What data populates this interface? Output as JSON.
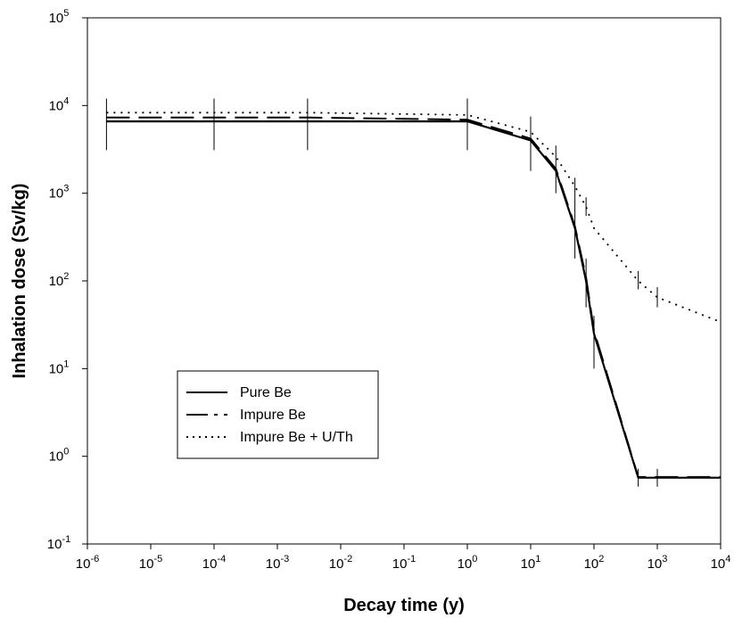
{
  "chart_data": {
    "type": "line",
    "title": "",
    "xlabel": "Decay time (y)",
    "ylabel": "Inhalation dose (Sv/kg)",
    "xscale": "log",
    "yscale": "log",
    "xlim": [
      1e-06,
      10000
    ],
    "ylim": [
      0.1,
      100000
    ],
    "x_ticks": [
      {
        "value": 1e-06,
        "base": "10",
        "exp": "-6"
      },
      {
        "value": 1e-05,
        "base": "10",
        "exp": "-5"
      },
      {
        "value": 0.0001,
        "base": "10",
        "exp": "-4"
      },
      {
        "value": 0.001,
        "base": "10",
        "exp": "-3"
      },
      {
        "value": 0.01,
        "base": "10",
        "exp": "-2"
      },
      {
        "value": 0.1,
        "base": "10",
        "exp": "-1"
      },
      {
        "value": 1,
        "base": "10",
        "exp": "0"
      },
      {
        "value": 10,
        "base": "10",
        "exp": "1"
      },
      {
        "value": 100,
        "base": "10",
        "exp": "2"
      },
      {
        "value": 1000,
        "base": "10",
        "exp": "3"
      },
      {
        "value": 10000,
        "base": "10",
        "exp": "4"
      }
    ],
    "y_ticks": [
      {
        "value": 0.1,
        "base": "10",
        "exp": "-1"
      },
      {
        "value": 1,
        "base": "10",
        "exp": "0"
      },
      {
        "value": 10,
        "base": "10",
        "exp": "1"
      },
      {
        "value": 100,
        "base": "10",
        "exp": "2"
      },
      {
        "value": 1000,
        "base": "10",
        "exp": "3"
      },
      {
        "value": 10000,
        "base": "10",
        "exp": "4"
      },
      {
        "value": 100000,
        "base": "10",
        "exp": "5"
      }
    ],
    "grid": false,
    "legend_position": "lower-left",
    "series": [
      {
        "name": "Pure Be",
        "line_style": "solid",
        "x": [
          2e-06,
          0.0001,
          0.003,
          1,
          10,
          25,
          50,
          75,
          100,
          500,
          1000,
          10000
        ],
        "y": [
          6600,
          6600,
          6600,
          6600,
          4000,
          1800,
          400,
          100,
          25,
          0.57,
          0.57,
          0.57
        ],
        "error_bars": [
          {
            "x": 2e-06,
            "low": 3100,
            "high": 12000
          },
          {
            "x": 0.0001,
            "low": 3100,
            "high": 12000
          },
          {
            "x": 0.003,
            "low": 3100,
            "high": 12000
          },
          {
            "x": 1,
            "low": 3100,
            "high": 12000
          },
          {
            "x": 10,
            "low": 1800,
            "high": 7500
          },
          {
            "x": 25,
            "low": 1000,
            "high": 3500
          },
          {
            "x": 50,
            "low": 180,
            "high": 900
          },
          {
            "x": 75,
            "low": 50,
            "high": 180
          },
          {
            "x": 100,
            "low": 10,
            "high": 40
          },
          {
            "x": 500,
            "low": 0.45,
            "high": 0.72
          },
          {
            "x": 1000,
            "low": 0.45,
            "high": 0.72
          }
        ]
      },
      {
        "name": "Impure Be",
        "line_style": "long-dash",
        "x": [
          2e-06,
          0.0001,
          0.003,
          1,
          10,
          25,
          50,
          75,
          100,
          500,
          1000,
          10000
        ],
        "y": [
          7300,
          7300,
          7300,
          6900,
          4200,
          1900,
          420,
          110,
          27,
          0.58,
          0.58,
          0.58
        ]
      },
      {
        "name": "Impure Be + U/Th",
        "line_style": "dotted",
        "x": [
          2e-06,
          0.0001,
          0.003,
          1,
          10,
          25,
          50,
          75,
          100,
          500,
          1000,
          10000
        ],
        "y": [
          8300,
          8300,
          8300,
          7800,
          5000,
          2600,
          1200,
          700,
          400,
          100,
          65,
          34
        ],
        "error_bars": [
          {
            "x": 50,
            "low": 900,
            "high": 1500
          },
          {
            "x": 75,
            "low": 550,
            "high": 900
          },
          {
            "x": 500,
            "low": 80,
            "high": 130
          },
          {
            "x": 1000,
            "low": 50,
            "high": 85
          }
        ]
      }
    ]
  }
}
